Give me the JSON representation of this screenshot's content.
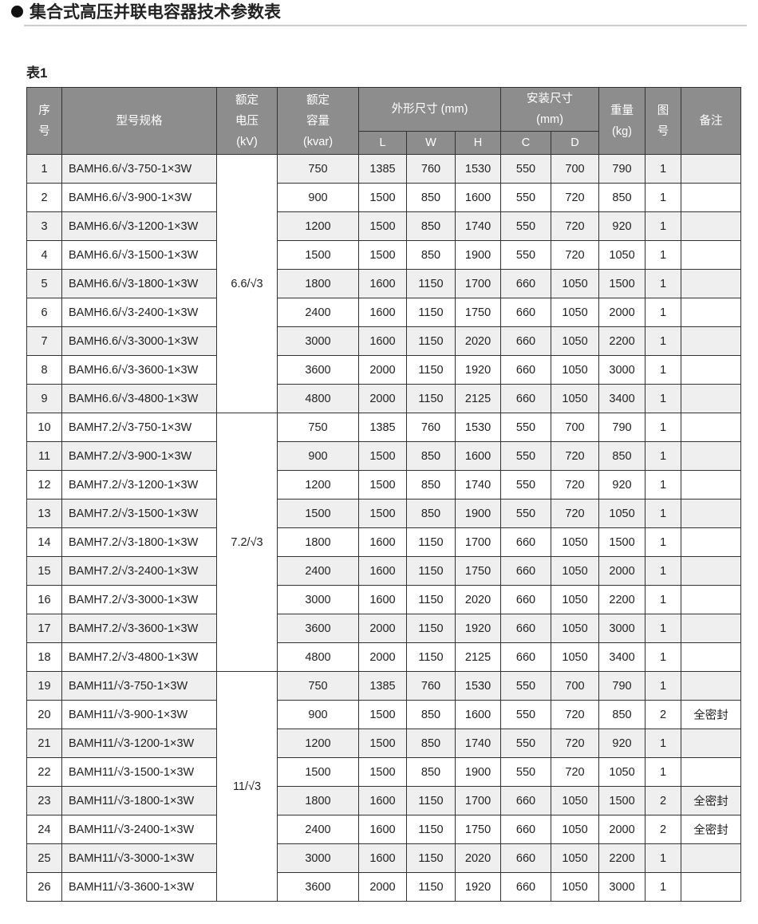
{
  "page_title": "集合式高压并联电容器技术参数表",
  "table_label": "表1",
  "headers": {
    "seq": "序号",
    "model": "型号规格",
    "voltage": [
      "额定",
      "电压",
      "(kV)"
    ],
    "capacity": [
      "额定",
      "容量",
      "(kvar)"
    ],
    "outer": "外形尺寸 (mm)",
    "install": [
      "安装尺寸",
      "(mm)"
    ],
    "weight": [
      "重量",
      "(kg)"
    ],
    "fig": "图号",
    "note": "备注",
    "sub": [
      "L",
      "W",
      "H",
      "C",
      "D"
    ]
  },
  "voltage_groups": [
    {
      "label": "6.6/√3",
      "rows": 9
    },
    {
      "label": "7.2/√3",
      "rows": 9
    },
    {
      "label": "11/√3",
      "rows": 8
    }
  ],
  "rows": [
    [
      "1",
      "BAMH6.6/√3-750-1×3W",
      "750",
      "1385",
      "760",
      "1530",
      "550",
      "700",
      "790",
      "1",
      ""
    ],
    [
      "2",
      "BAMH6.6/√3-900-1×3W",
      "900",
      "1500",
      "850",
      "1600",
      "550",
      "720",
      "850",
      "1",
      ""
    ],
    [
      "3",
      "BAMH6.6/√3-1200-1×3W",
      "1200",
      "1500",
      "850",
      "1740",
      "550",
      "720",
      "920",
      "1",
      ""
    ],
    [
      "4",
      "BAMH6.6/√3-1500-1×3W",
      "1500",
      "1500",
      "850",
      "1900",
      "550",
      "720",
      "1050",
      "1",
      ""
    ],
    [
      "5",
      "BAMH6.6/√3-1800-1×3W",
      "1800",
      "1600",
      "1150",
      "1700",
      "660",
      "1050",
      "1500",
      "1",
      ""
    ],
    [
      "6",
      "BAMH6.6/√3-2400-1×3W",
      "2400",
      "1600",
      "1150",
      "1750",
      "660",
      "1050",
      "2000",
      "1",
      ""
    ],
    [
      "7",
      "BAMH6.6/√3-3000-1×3W",
      "3000",
      "1600",
      "1150",
      "2020",
      "660",
      "1050",
      "2200",
      "1",
      ""
    ],
    [
      "8",
      "BAMH6.6/√3-3600-1×3W",
      "3600",
      "2000",
      "1150",
      "1920",
      "660",
      "1050",
      "3000",
      "1",
      ""
    ],
    [
      "9",
      "BAMH6.6/√3-4800-1×3W",
      "4800",
      "2000",
      "1150",
      "2125",
      "660",
      "1050",
      "3400",
      "1",
      ""
    ],
    [
      "10",
      "BAMH7.2/√3-750-1×3W",
      "750",
      "1385",
      "760",
      "1530",
      "550",
      "700",
      "790",
      "1",
      ""
    ],
    [
      "11",
      "BAMH7.2/√3-900-1×3W",
      "900",
      "1500",
      "850",
      "1600",
      "550",
      "720",
      "850",
      "1",
      ""
    ],
    [
      "12",
      "BAMH7.2/√3-1200-1×3W",
      "1200",
      "1500",
      "850",
      "1740",
      "550",
      "720",
      "920",
      "1",
      ""
    ],
    [
      "13",
      "BAMH7.2/√3-1500-1×3W",
      "1500",
      "1500",
      "850",
      "1900",
      "550",
      "720",
      "1050",
      "1",
      ""
    ],
    [
      "14",
      "BAMH7.2/√3-1800-1×3W",
      "1800",
      "1600",
      "1150",
      "1700",
      "660",
      "1050",
      "1500",
      "1",
      ""
    ],
    [
      "15",
      "BAMH7.2/√3-2400-1×3W",
      "2400",
      "1600",
      "1150",
      "1750",
      "660",
      "1050",
      "2000",
      "1",
      ""
    ],
    [
      "16",
      "BAMH7.2/√3-3000-1×3W",
      "3000",
      "1600",
      "1150",
      "2020",
      "660",
      "1050",
      "2200",
      "1",
      ""
    ],
    [
      "17",
      "BAMH7.2/√3-3600-1×3W",
      "3600",
      "2000",
      "1150",
      "1920",
      "660",
      "1050",
      "3000",
      "1",
      ""
    ],
    [
      "18",
      "BAMH7.2/√3-4800-1×3W",
      "4800",
      "2000",
      "1150",
      "2125",
      "660",
      "1050",
      "3400",
      "1",
      ""
    ],
    [
      "19",
      "BAMH11/√3-750-1×3W",
      "750",
      "1385",
      "760",
      "1530",
      "550",
      "700",
      "790",
      "1",
      ""
    ],
    [
      "20",
      "BAMH11/√3-900-1×3W",
      "900",
      "1500",
      "850",
      "1600",
      "550",
      "720",
      "850",
      "2",
      "全密封"
    ],
    [
      "21",
      "BAMH11/√3-1200-1×3W",
      "1200",
      "1500",
      "850",
      "1740",
      "550",
      "720",
      "920",
      "1",
      ""
    ],
    [
      "22",
      "BAMH11/√3-1500-1×3W",
      "1500",
      "1500",
      "850",
      "1900",
      "550",
      "720",
      "1050",
      "1",
      ""
    ],
    [
      "23",
      "BAMH11/√3-1800-1×3W",
      "1800",
      "1600",
      "1150",
      "1700",
      "660",
      "1050",
      "1500",
      "2",
      "全密封"
    ],
    [
      "24",
      "BAMH11/√3-2400-1×3W",
      "2400",
      "1600",
      "1150",
      "1750",
      "660",
      "1050",
      "2000",
      "2",
      "全密封"
    ],
    [
      "25",
      "BAMH11/√3-3000-1×3W",
      "3000",
      "1600",
      "1150",
      "2020",
      "660",
      "1050",
      "2200",
      "1",
      ""
    ],
    [
      "26",
      "BAMH11/√3-3600-1×3W",
      "3600",
      "2000",
      "1150",
      "1920",
      "660",
      "1050",
      "3000",
      "1",
      ""
    ]
  ]
}
